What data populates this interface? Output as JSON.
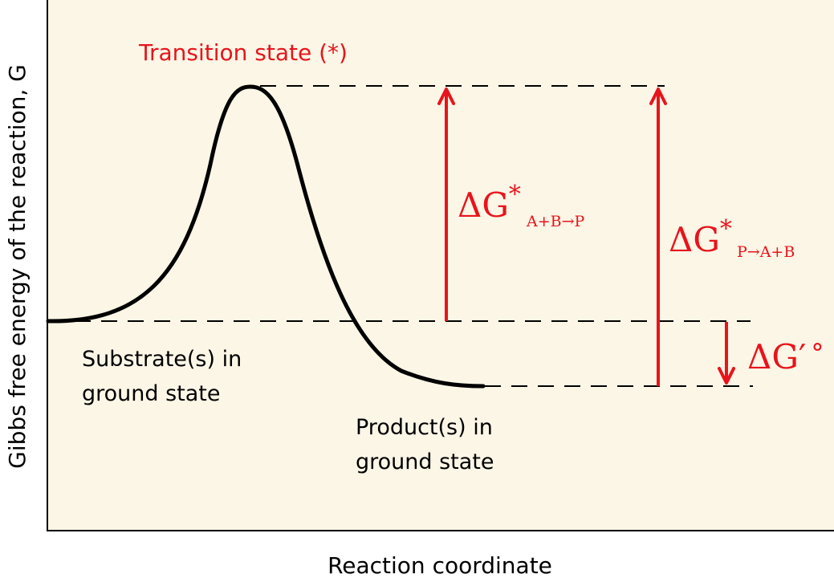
{
  "colors": {
    "background": "#fbf6e6",
    "curve": "#000000",
    "accent": "#e8141b",
    "dash": "#000000"
  },
  "labels": {
    "y_axis": "Gibbs free energy of the reaction, G",
    "x_axis": "Reaction coordinate",
    "transition_state": "Transition state (*)",
    "substrate_line1": "Substrate(s) in",
    "substrate_line2": "ground state",
    "product_line1": "Product(s) in",
    "product_line2": "ground state"
  },
  "energy_labels": {
    "forward": {
      "symbol": "ΔG",
      "superscript": "*",
      "subscript": "A+B→P"
    },
    "reverse": {
      "symbol": "ΔG",
      "superscript": "*",
      "subscript": "P→A+B"
    },
    "standard": {
      "symbol": "ΔG′",
      "suffix": "°"
    }
  }
}
